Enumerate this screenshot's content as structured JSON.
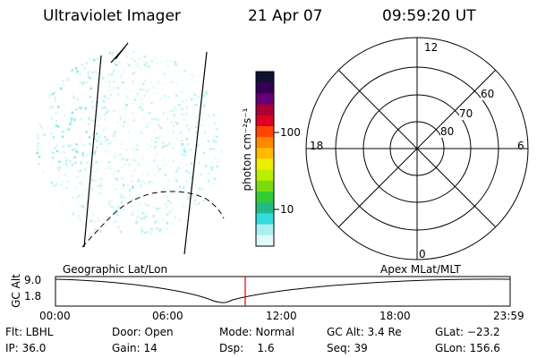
{
  "header": {
    "title": "Ultraviolet Imager",
    "date": "21 Apr 07",
    "time": "09:59:20 UT"
  },
  "colorbar": {
    "label": "photon cm⁻²s⁻¹",
    "ticks": [
      "100",
      "10"
    ],
    "colors": [
      "#111133",
      "#330055",
      "#660077",
      "#aa0033",
      "#dd0022",
      "#ff4400",
      "#ff8800",
      "#ffbb00",
      "#eeee00",
      "#bbee00",
      "#77dd11",
      "#33cc33",
      "#22bb88",
      "#33dddd",
      "#aaf0f0",
      "#e0fafa"
    ]
  },
  "polar": {
    "mlt_labels": {
      "top": "12",
      "left": "18",
      "right": "6",
      "bottom": "0"
    },
    "lat_labels": [
      "60",
      "70",
      "80"
    ]
  },
  "timeline": {
    "ylabel": "GC Alt",
    "left_title": "Geographic Lat/Lon",
    "right_title": "Apex  MLat/MLT",
    "yticks": [
      "9.0",
      "1.8"
    ],
    "xticks": [
      "00:00",
      "06:00",
      "12:00",
      "18:00",
      "23:59"
    ],
    "marker_color": "#dd0000"
  },
  "info": {
    "flt": "Flt: LBHL",
    "ip": "IP: 36.0",
    "door": "Door: Open",
    "gain": "Gain: 14",
    "mode": "Mode: Normal",
    "dsp": "Dsp:    1.6",
    "gc_alt": "GC Alt: 3.4 Re",
    "seq": "Seq: 39",
    "glat": "GLat: −23.2",
    "glon": "GLon: 156.6"
  }
}
